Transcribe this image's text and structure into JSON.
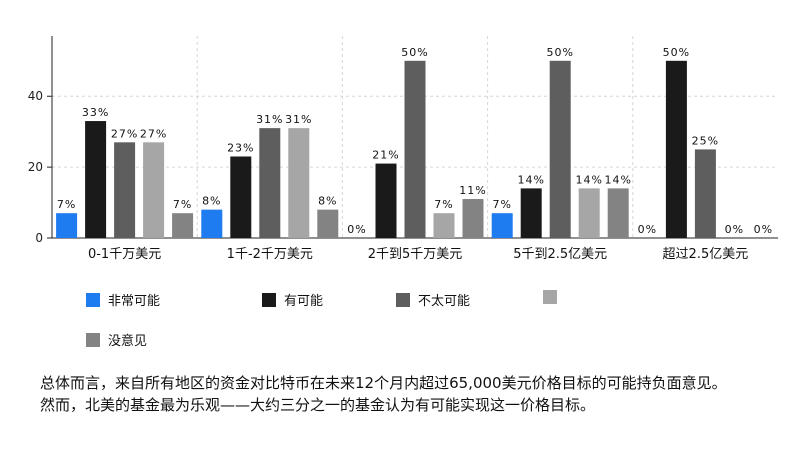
{
  "chart_data": {
    "type": "bar",
    "categories": [
      "0-1千万美元",
      "1千-2千万美元",
      "2千到5千万美元",
      "5千到2.5亿美元",
      "超过2.5亿美元"
    ],
    "series": [
      {
        "name": "非常可能",
        "color": "#1E7BF0",
        "values": [
          7,
          8,
          0,
          7,
          0
        ],
        "labels": [
          "7%",
          "8%",
          "0%",
          "7%",
          "0%"
        ]
      },
      {
        "name": "有可能",
        "color": "#1A1A1A",
        "values": [
          33,
          23,
          21,
          14,
          50
        ],
        "labels": [
          "33%",
          "23%",
          "21%",
          "14%",
          "50%"
        ]
      },
      {
        "name": "不太可能",
        "color": "#5E5E5E",
        "values": [
          27,
          31,
          50,
          50,
          25
        ],
        "labels": [
          "27%",
          "31%",
          "50%",
          "50%",
          "25%"
        ]
      },
      {
        "name": "",
        "color": "#A6A6A6",
        "values": [
          27,
          31,
          7,
          14,
          0
        ],
        "labels": [
          "27%",
          "31%",
          "7%",
          "14%",
          "0%"
        ]
      },
      {
        "name": "没意见",
        "color": "#838383",
        "values": [
          7,
          8,
          11,
          14,
          0
        ],
        "labels": [
          "7%",
          "8%",
          "11%",
          "14%",
          "0%"
        ]
      }
    ],
    "yticks": [
      0,
      20,
      40
    ],
    "ylim": [
      0,
      57
    ],
    "grid": true,
    "legend_position": "bottom"
  },
  "notes": [
    "总体而言，来自所有地区的资金对比特币在未来12个月内超过65,000美元价格目标的可能持负面意见。",
    "然而，北美的基金最为乐观——大约三分之一的基金认为有可能实现这一价格目标。"
  ]
}
